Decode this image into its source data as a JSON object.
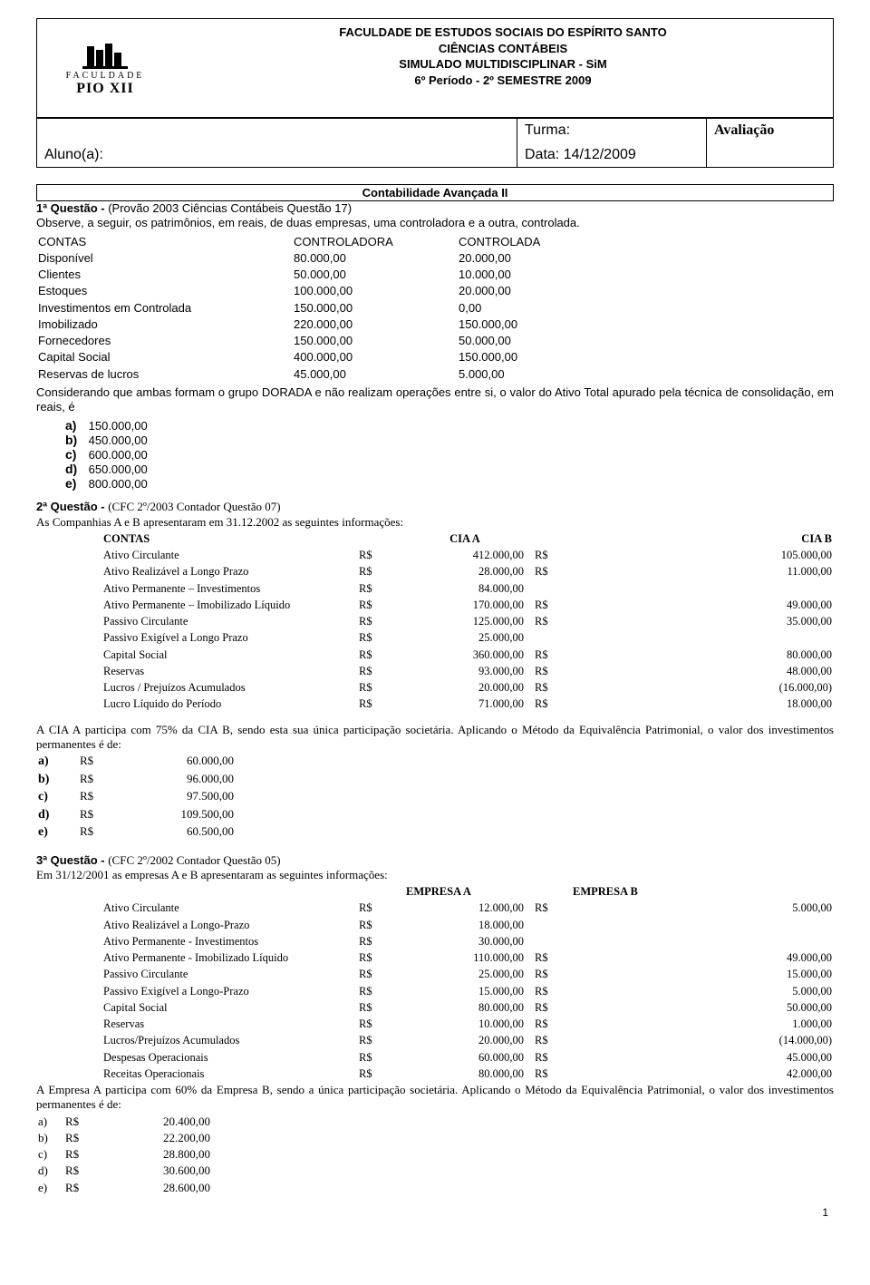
{
  "header": {
    "line1": "FACULDADE DE ESTUDOS SOCIAIS DO ESPÍRITO SANTO",
    "line2": "CIÊNCIAS CONTÁBEIS",
    "line3": "SIMULADO MULTIDISCIPLINAR - SiM",
    "line4": "6º Período - 2º SEMESTRE 2009",
    "logo_top": "FACULDADE",
    "logo_bot": "PIO XII",
    "aluno_label": "Aluno(a):",
    "turma_label": "Turma:",
    "data_label": "Data:  14/12/2009",
    "avaliacao_label": "Avaliação"
  },
  "section_title": "Contabilidade Avançada II",
  "q1": {
    "title": "1ª Questão - ",
    "source": "(Provão 2003 Ciências Contábeis Questão 17)",
    "lead": "Observe, a seguir, os patrimônios, em reais, de duas empresas, uma controladora e a outra, controlada.",
    "hdr_c1": "CONTAS",
    "hdr_c2": "CONTROLADORA",
    "hdr_c3": "CONTROLADA",
    "rows": [
      {
        "c1": "Disponível",
        "c2": "80.000,00",
        "c3": "20.000,00"
      },
      {
        "c1": "Clientes",
        "c2": "50.000,00",
        "c3": "10.000,00"
      },
      {
        "c1": "Estoques",
        "c2": "100.000,00",
        "c3": "20.000,00"
      },
      {
        "c1": "Investimentos em    Controlada",
        "c2": "150.000,00",
        "c3": "0,00"
      },
      {
        "c1": "Imobilizado",
        "c2": "220.000,00",
        "c3": "150.000,00"
      },
      {
        "c1": "Fornecedores",
        "c2": "150.000,00",
        "c3": "50.000,00"
      },
      {
        "c1": "Capital Social",
        "c2": "400.000,00",
        "c3": "150.000,00"
      },
      {
        "c1": "Reservas de lucros",
        "c2": "45.000,00",
        "c3": "5.000,00"
      }
    ],
    "post": "Considerando que ambas formam o grupo DORADA e não realizam operações entre si, o valor do Ativo Total apurado pela técnica de consolidação, em reais, é",
    "opts": [
      {
        "l": "a)",
        "v": "150.000,00"
      },
      {
        "l": "b)",
        "v": "450.000,00"
      },
      {
        "l": "c)",
        "v": "600.000,00"
      },
      {
        "l": "d)",
        "v": "650.000,00"
      },
      {
        "l": "e)",
        "v": "800.000,00"
      }
    ]
  },
  "q2": {
    "title": "2ª Questão - ",
    "source": "(CFC 2º/2003 Contador Questão 07)",
    "lead": "As Companhias A e B apresentaram em 31.12.2002 as seguintes informações:",
    "hdr_c1": "CONTAS",
    "hdr_c2": "CIA A",
    "hdr_c3": "CIA B",
    "rows": [
      {
        "c1": "Ativo Circulante",
        "a": "R$",
        "av": "412.000,00",
        "b": "R$",
        "bv": "105.000,00"
      },
      {
        "c1": "Ativo Realizável a Longo Prazo",
        "a": "R$",
        "av": "28.000,00",
        "b": "R$",
        "bv": "11.000,00"
      },
      {
        "c1": "Ativo Permanente – Investimentos",
        "a": "R$",
        "av": "84.000,00",
        "b": "",
        "bv": ""
      },
      {
        "c1": "Ativo Permanente – Imobilizado Líquido",
        "a": "R$",
        "av": "170.000,00",
        "b": "R$",
        "bv": "49.000,00"
      },
      {
        "c1": "Passivo Circulante",
        "a": "R$",
        "av": "125.000,00",
        "b": "R$",
        "bv": "35.000,00"
      },
      {
        "c1": "Passivo Exigível a Longo Prazo",
        "a": "R$",
        "av": "25.000,00",
        "b": "",
        "bv": ""
      },
      {
        "c1": "Capital Social",
        "a": "R$",
        "av": "360.000,00",
        "b": "R$",
        "bv": "80.000,00"
      },
      {
        "c1": "Reservas",
        "a": "R$",
        "av": "93.000,00",
        "b": "R$",
        "bv": "48.000,00"
      },
      {
        "c1": "Lucros / Prejuízos Acumulados",
        "a": "R$",
        "av": "20.000,00",
        "b": "R$",
        "bv": "(16.000,00)"
      },
      {
        "c1": "Lucro Líquido do Período",
        "a": "R$",
        "av": "71.000,00",
        "b": "R$",
        "bv": "18.000,00"
      }
    ],
    "post": "A CIA A participa com 75% da CIA B, sendo esta sua única participação societária. Aplicando o Método da Equivalência Patrimonial, o valor dos investimentos permanentes é de:",
    "opts": [
      {
        "l": "a)",
        "a": "R$",
        "v": "60.000,00"
      },
      {
        "l": "b)",
        "a": "R$",
        "v": "96.000,00"
      },
      {
        "l": "c)",
        "a": "R$",
        "v": "97.500,00"
      },
      {
        "l": "d)",
        "a": "R$",
        "v": "109.500,00"
      },
      {
        "l": "e)",
        "a": "R$",
        "v": "60.500,00"
      }
    ]
  },
  "q3": {
    "title": "3ª Questão - ",
    "source": "(CFC 2º/2002 Contador Questão 05)",
    "lead": "Em 31/12/2001 as empresas A e B apresentaram as seguintes informações:",
    "hdr_c2": "EMPRESA A",
    "hdr_c3": "EMPRESA B",
    "rows": [
      {
        "c1": "Ativo Circulante",
        "a": "R$",
        "av": "12.000,00",
        "b": "R$",
        "bv": "5.000,00"
      },
      {
        "c1": "Ativo Realizável a Longo-Prazo",
        "a": "R$",
        "av": "18.000,00",
        "b": "",
        "bv": ""
      },
      {
        "c1": "Ativo Permanente - Investimentos",
        "a": "R$",
        "av": "30.000,00",
        "b": "",
        "bv": ""
      },
      {
        "c1": "Ativo Permanente - Imobilizado Líquido",
        "a": "R$",
        "av": "110.000,00",
        "b": "R$",
        "bv": "49.000,00"
      },
      {
        "c1": "Passivo Circulante",
        "a": "R$",
        "av": "25.000,00",
        "b": "R$",
        "bv": "15.000,00"
      },
      {
        "c1": "Passivo Exigível a Longo-Prazo",
        "a": "R$",
        "av": "15.000,00",
        "b": "R$",
        "bv": "5.000,00"
      },
      {
        "c1": "Capital Social",
        "a": "R$",
        "av": "80.000,00",
        "b": "R$",
        "bv": "50.000,00"
      },
      {
        "c1": "Reservas",
        "a": "R$",
        "av": "10.000,00",
        "b": "R$",
        "bv": "1.000,00"
      },
      {
        "c1": "Lucros/Prejuízos Acumulados",
        "a": "R$",
        "av": "20.000,00",
        "b": "R$",
        "bv": "(14.000,00)"
      },
      {
        "c1": "Despesas Operacionais",
        "a": "R$",
        "av": "60.000,00",
        "b": "R$",
        "bv": "45.000,00"
      },
      {
        "c1": "Receitas Operacionais",
        "a": "R$",
        "av": "80.000,00",
        "b": "R$",
        "bv": "42.000,00"
      }
    ],
    "post": "A Empresa A participa com 60% da Empresa B, sendo a única participação societária. Aplicando o Método da Equivalência Patrimonial, o valor dos investimentos permanentes é de:",
    "opts": [
      {
        "l": "a)",
        "a": "R$",
        "v": "20.400,00"
      },
      {
        "l": "b)",
        "a": "R$",
        "v": "22.200,00"
      },
      {
        "l": "c)",
        "a": "R$",
        "v": "28.800,00"
      },
      {
        "l": "d)",
        "a": "R$",
        "v": "30.600,00"
      },
      {
        "l": "e)",
        "a": "R$",
        "v": "28.600,00"
      }
    ]
  },
  "page_number": "1"
}
